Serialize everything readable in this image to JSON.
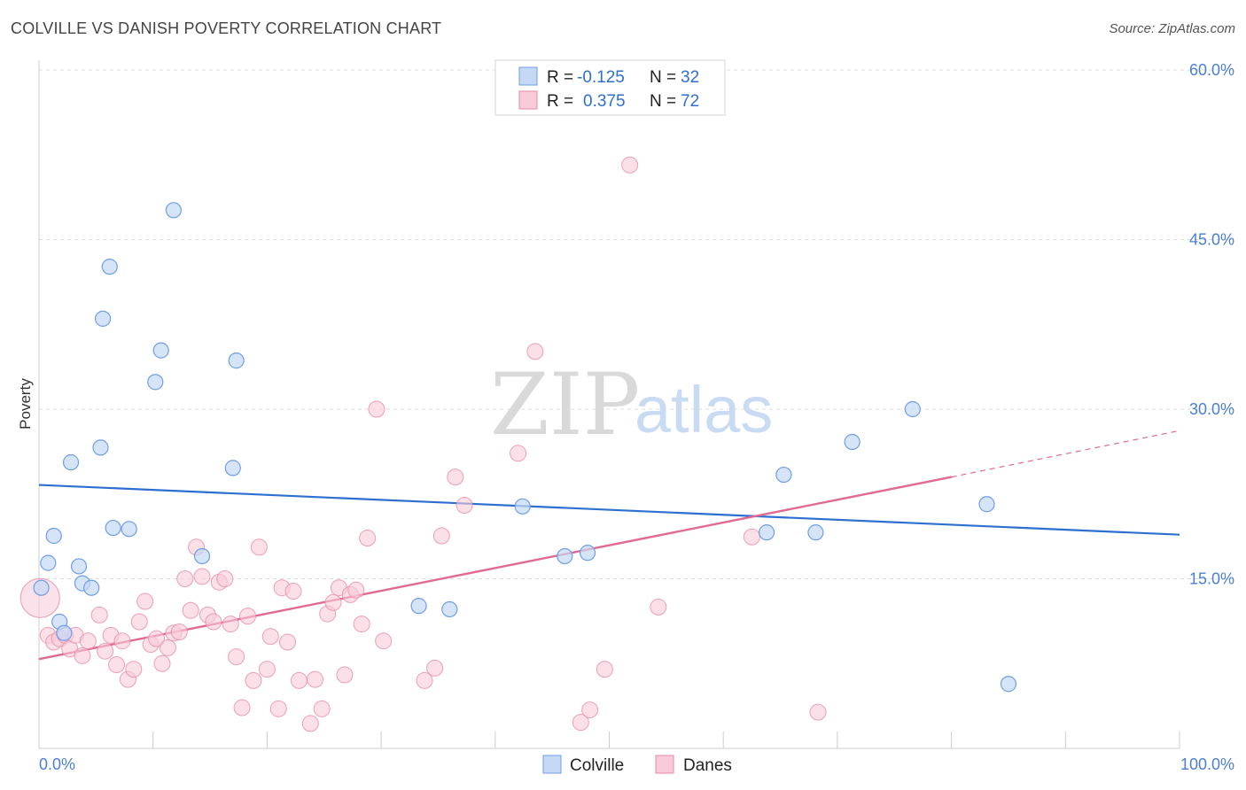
{
  "title": "COLVILLE VS DANISH POVERTY CORRELATION CHART",
  "source": "Source: ZipAtlas.com",
  "watermark": {
    "zip": "ZIP",
    "atlas": "atlas"
  },
  "colors": {
    "colville": "#6f9ee6",
    "colville_fill": "#c5d9f5",
    "colville_line": "#2c6fd0",
    "danes": "#e88aa8",
    "danes_fill": "#f8cbd8",
    "danes_line": "#e06a93",
    "axis_text": "#4a7fd4",
    "grid": "#dcdcdc"
  },
  "legend_top": {
    "rows": [
      {
        "r_label": "R =",
        "r_value": "-0.125",
        "n_label": "N =",
        "n_value": "32"
      },
      {
        "r_label": "R =",
        "r_value": "0.375",
        "n_label": "N =",
        "n_value": "72"
      }
    ]
  },
  "legend_bottom": {
    "items": [
      "Colville",
      "Danes"
    ]
  },
  "chart_data": {
    "type": "scatter",
    "title": "COLVILLE VS DANISH POVERTY CORRELATION CHART",
    "xlabel": "",
    "ylabel": "Poverty",
    "xlim": [
      0,
      100
    ],
    "ylim": [
      0,
      60
    ],
    "x_tick_labels": [
      "0.0%",
      "100.0%"
    ],
    "y_ticks": [
      15,
      30,
      45,
      60
    ],
    "y_tick_labels": [
      "15.0%",
      "30.0%",
      "45.0%",
      "60.0%"
    ],
    "grid": true,
    "legend": "top-center",
    "series": [
      {
        "name": "Colville",
        "r": -0.125,
        "n": 32,
        "trend": {
          "x0": 0,
          "y0": 23.3,
          "x1": 100,
          "y1": 18.9
        },
        "points": [
          [
            0.2,
            14.2
          ],
          [
            0.8,
            16.4
          ],
          [
            1.3,
            18.8
          ],
          [
            1.8,
            11.2
          ],
          [
            2.2,
            10.2
          ],
          [
            2.8,
            25.3
          ],
          [
            3.5,
            16.1
          ],
          [
            3.8,
            14.6
          ],
          [
            4.6,
            14.2
          ],
          [
            5.4,
            26.6
          ],
          [
            5.6,
            38.0
          ],
          [
            6.2,
            42.6
          ],
          [
            6.5,
            19.5
          ],
          [
            7.9,
            19.4
          ],
          [
            10.2,
            32.4
          ],
          [
            10.7,
            35.2
          ],
          [
            11.8,
            47.6
          ],
          [
            14.3,
            17.0
          ],
          [
            17.0,
            24.8
          ],
          [
            17.3,
            34.3
          ],
          [
            33.3,
            12.6
          ],
          [
            36.0,
            12.3
          ],
          [
            42.4,
            21.4
          ],
          [
            46.1,
            17.0
          ],
          [
            48.1,
            17.3
          ],
          [
            63.8,
            19.1
          ],
          [
            65.3,
            24.2
          ],
          [
            68.1,
            19.1
          ],
          [
            71.3,
            27.1
          ],
          [
            76.6,
            30.0
          ],
          [
            83.1,
            21.6
          ],
          [
            85.0,
            5.7
          ]
        ]
      },
      {
        "name": "Danes",
        "r": 0.375,
        "n": 72,
        "trend": {
          "x0": 0,
          "y0": 7.9,
          "x1": 80,
          "y1": 24.0
        },
        "trend_dashed": {
          "x0": 80,
          "y0": 24.0,
          "x1": 100,
          "y1": 28.1
        },
        "points": [
          [
            0.1,
            13.3
          ],
          [
            0.8,
            10.0
          ],
          [
            1.3,
            9.4
          ],
          [
            1.8,
            9.7
          ],
          [
            2.3,
            10.0
          ],
          [
            2.7,
            8.8
          ],
          [
            3.2,
            10.0
          ],
          [
            3.8,
            8.2
          ],
          [
            4.3,
            9.5
          ],
          [
            5.3,
            11.8
          ],
          [
            5.8,
            8.6
          ],
          [
            6.3,
            10.0
          ],
          [
            6.8,
            7.4
          ],
          [
            7.3,
            9.5
          ],
          [
            7.8,
            6.1
          ],
          [
            8.3,
            7.0
          ],
          [
            8.8,
            11.2
          ],
          [
            9.3,
            13.0
          ],
          [
            9.8,
            9.2
          ],
          [
            10.3,
            9.7
          ],
          [
            10.8,
            7.5
          ],
          [
            11.3,
            8.9
          ],
          [
            11.8,
            10.2
          ],
          [
            12.3,
            10.3
          ],
          [
            12.8,
            15.0
          ],
          [
            13.3,
            12.2
          ],
          [
            13.8,
            17.8
          ],
          [
            14.3,
            15.2
          ],
          [
            14.8,
            11.8
          ],
          [
            15.3,
            11.2
          ],
          [
            15.8,
            14.7
          ],
          [
            16.3,
            15.0
          ],
          [
            16.8,
            11.0
          ],
          [
            17.3,
            8.1
          ],
          [
            17.8,
            3.6
          ],
          [
            18.3,
            11.7
          ],
          [
            18.8,
            6.0
          ],
          [
            19.3,
            17.8
          ],
          [
            20.0,
            7.0
          ],
          [
            20.3,
            9.9
          ],
          [
            21.0,
            3.5
          ],
          [
            21.3,
            14.2
          ],
          [
            21.8,
            9.4
          ],
          [
            22.3,
            13.9
          ],
          [
            22.8,
            6.0
          ],
          [
            23.8,
            2.2
          ],
          [
            24.2,
            6.1
          ],
          [
            24.8,
            3.5
          ],
          [
            25.3,
            11.9
          ],
          [
            25.8,
            12.9
          ],
          [
            26.3,
            14.2
          ],
          [
            26.8,
            6.5
          ],
          [
            27.3,
            13.6
          ],
          [
            27.8,
            14.0
          ],
          [
            28.3,
            11.0
          ],
          [
            28.8,
            18.6
          ],
          [
            29.6,
            30.0
          ],
          [
            30.2,
            9.5
          ],
          [
            33.8,
            6.0
          ],
          [
            34.7,
            7.1
          ],
          [
            35.3,
            18.8
          ],
          [
            36.5,
            24.0
          ],
          [
            37.3,
            21.5
          ],
          [
            42.0,
            26.1
          ],
          [
            43.5,
            35.1
          ],
          [
            47.5,
            2.3
          ],
          [
            48.3,
            3.4
          ],
          [
            49.6,
            7.0
          ],
          [
            51.8,
            51.6
          ],
          [
            54.3,
            12.5
          ],
          [
            62.5,
            18.7
          ],
          [
            68.3,
            3.2
          ]
        ]
      }
    ]
  }
}
